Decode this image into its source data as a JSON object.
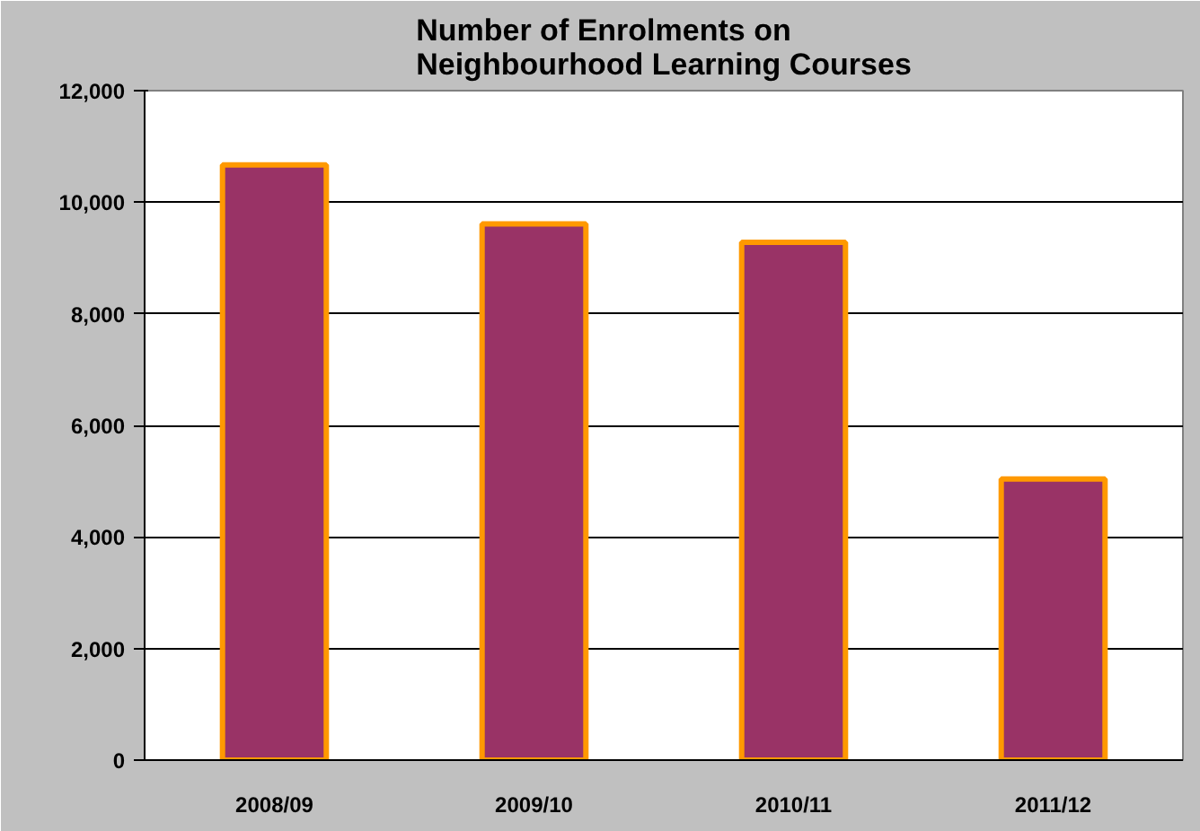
{
  "chart_data": {
    "type": "bar",
    "title": "Number of Enrolments on\nNeighbourhood Learning Courses",
    "categories": [
      "2008/09",
      "2009/10",
      "2010/11",
      "2011/12"
    ],
    "values": [
      10670,
      9610,
      9280,
      5040
    ],
    "color": "#993366",
    "ylim": [
      0,
      12000
    ],
    "yticks": [
      {
        "value": 0,
        "label": "0"
      },
      {
        "value": 2000,
        "label": "2,000"
      },
      {
        "value": 4000,
        "label": "4,000"
      },
      {
        "value": 6000,
        "label": "6,000"
      },
      {
        "value": 8000,
        "label": "8,000"
      },
      {
        "value": 10000,
        "label": "10,000"
      },
      {
        "value": 12000,
        "label": "12,000"
      }
    ],
    "grid": "y"
  }
}
